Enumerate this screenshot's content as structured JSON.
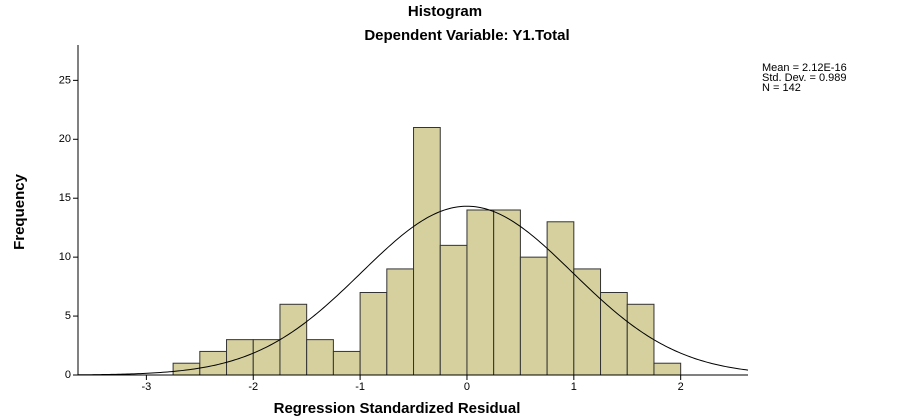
{
  "chart_data": {
    "type": "histogram",
    "title": "Histogram",
    "subtitle": "Dependent Variable: Y1.Total",
    "x_label": "Regression Standardized Residual",
    "y_label": "Frequency",
    "bins": [
      -2.75,
      -2.5,
      -2.25,
      -2.0,
      -1.75,
      -1.5,
      -1.25,
      -1.0,
      -0.75,
      -0.5,
      -0.25,
      0.0,
      0.25,
      0.5,
      0.75,
      1.0,
      1.25,
      1.5,
      1.75,
      2.0
    ],
    "values": [
      1,
      2,
      3,
      3,
      6,
      3,
      2,
      7,
      9,
      21,
      11,
      14,
      14,
      10,
      13,
      9,
      7,
      6,
      1
    ],
    "color": "#d5d09e",
    "xlim": [
      -3.64,
      2.63
    ],
    "ylim": [
      0,
      28
    ],
    "xticks": [
      -3,
      -2,
      -1,
      0,
      1,
      2
    ],
    "yticks": [
      0,
      5,
      10,
      15,
      20,
      25
    ],
    "stats": [
      {
        "value": 2.12e-16,
        "label": "Mean = 2.12E-16"
      },
      {
        "value": 0.989,
        "label": "Std. Dev. = 0.989"
      },
      {
        "value": 142,
        "label": "N = 142"
      }
    ]
  }
}
